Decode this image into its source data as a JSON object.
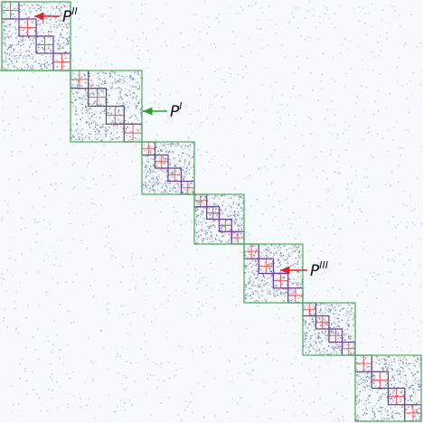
{
  "labels": [
    {
      "base": "P",
      "sup": "II"
    },
    {
      "base": "P",
      "sup": "I"
    },
    {
      "base": "P",
      "sup": "III"
    }
  ]
}
